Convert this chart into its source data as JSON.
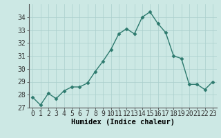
{
  "x": [
    0,
    1,
    2,
    3,
    4,
    5,
    6,
    7,
    8,
    9,
    10,
    11,
    12,
    13,
    14,
    15,
    16,
    17,
    18,
    19,
    20,
    21,
    22,
    23
  ],
  "y": [
    27.8,
    27.2,
    28.1,
    27.7,
    28.3,
    28.6,
    28.6,
    28.9,
    29.8,
    30.6,
    31.5,
    32.7,
    33.1,
    32.7,
    34.0,
    34.4,
    33.5,
    32.8,
    31.0,
    30.8,
    28.8,
    28.8,
    28.4,
    29.0
  ],
  "line_color": "#2d7a6e",
  "marker": "D",
  "markersize": 2.5,
  "linewidth": 1.0,
  "bg_color": "#cce8e4",
  "grid_color": "#aacfcc",
  "xlabel": "Humidex (Indice chaleur)",
  "ylim": [
    27,
    35
  ],
  "yticks": [
    27,
    28,
    29,
    30,
    31,
    32,
    33,
    34
  ],
  "xticks": [
    0,
    1,
    2,
    3,
    4,
    5,
    6,
    7,
    8,
    9,
    10,
    11,
    12,
    13,
    14,
    15,
    16,
    17,
    18,
    19,
    20,
    21,
    22,
    23
  ],
  "xlabel_fontsize": 7.5,
  "tick_fontsize": 7
}
